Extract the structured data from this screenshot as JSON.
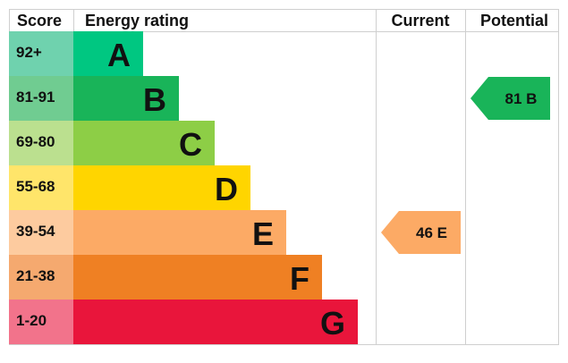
{
  "headers": {
    "score": "Score",
    "rating": "Energy rating",
    "current": "Current",
    "potential": "Potential"
  },
  "chart_data": {
    "type": "bar",
    "title": "",
    "bands": [
      {
        "score": "92+",
        "letter": "A",
        "color": "#00c781",
        "score_color": "#6fd2ae",
        "level": 1
      },
      {
        "score": "81-91",
        "letter": "B",
        "color": "#19b459",
        "score_color": "#70cc91",
        "level": 2
      },
      {
        "score": "69-80",
        "letter": "C",
        "color": "#8dce46",
        "score_color": "#bbe08f",
        "level": 3
      },
      {
        "score": "55-68",
        "letter": "D",
        "color": "#ffd500",
        "score_color": "#ffe56a",
        "level": 4
      },
      {
        "score": "39-54",
        "letter": "E",
        "color": "#fcaa65",
        "score_color": "#fdcb9f",
        "level": 5
      },
      {
        "score": "21-38",
        "letter": "F",
        "color": "#ef8023",
        "score_color": "#f5a96f",
        "level": 6
      },
      {
        "score": "1-20",
        "letter": "G",
        "color": "#e9153b",
        "score_color": "#f2738b",
        "level": 7
      }
    ],
    "current": {
      "value": 46,
      "band": "E",
      "label": "46  E",
      "color": "#fcaa65",
      "text_color": "#111111"
    },
    "potential": {
      "value": 81,
      "band": "B",
      "label": "81  B",
      "color": "#19b459",
      "text_color": "#111111"
    }
  }
}
